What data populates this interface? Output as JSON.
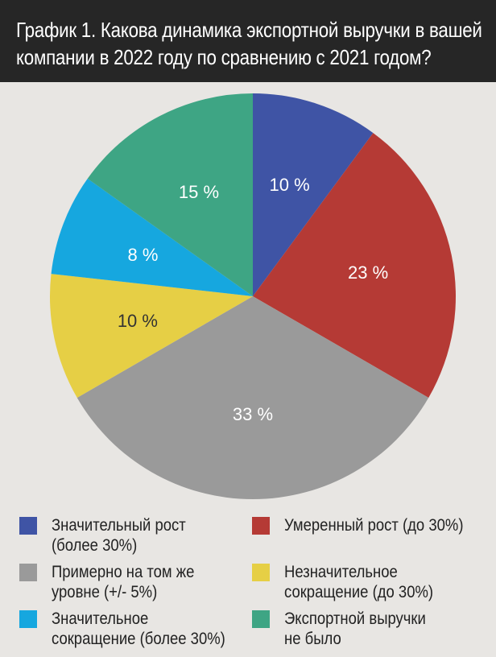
{
  "header": {
    "title_line1": "График 1. Какова динамика экспортной выручки в вашей",
    "title_line2": "компании в 2022 году по сравнению с 2021 годом?"
  },
  "chart_data": {
    "type": "pie",
    "title": "График 1. Какова динамика экспортной выручки в вашей компании в 2022 году по сравнению с 2021 годом?",
    "start": "12 o'clock, clockwise",
    "slices": [
      {
        "label": "Значительный рост (более 30%)",
        "value": 10,
        "display": "10 %",
        "color": "#3f54a5"
      },
      {
        "label": "Умеренный рост (до 30%)",
        "value": 23,
        "display": "23 %",
        "color": "#b53a35"
      },
      {
        "label": "Примерно на том же уровне (+/- 5%)",
        "value": 33,
        "display": "33 %",
        "color": "#9a9a9a"
      },
      {
        "label": "Незначительное сокращение (до 30%)",
        "value": 10,
        "display": "10 %",
        "color": "#e6cf45"
      },
      {
        "label": "Значительное сокращение (более 30%)",
        "value": 8,
        "display": "8 %",
        "color": "#16a7df"
      },
      {
        "label": "Экспортной выручки не было",
        "value": 15,
        "display": "15 %",
        "color": "#3ea584"
      }
    ],
    "legend_placement": "bottom"
  },
  "legend": [
    {
      "line1": "Значительный рост",
      "line2": "(более 30%)",
      "color": "#3f54a5"
    },
    {
      "line1": "Умеренный рост (до 30%)",
      "line2": "",
      "color": "#b53a35"
    },
    {
      "line1": "Примерно на том же",
      "line2": "уровне (+/- 5%)",
      "color": "#9a9a9a"
    },
    {
      "line1": "Незначительное",
      "line2": "сокращение (до 30%)",
      "color": "#e6cf45"
    },
    {
      "line1": "Значительное",
      "line2": "сокращение (более 30%)",
      "color": "#16a7df"
    },
    {
      "line1": "Экспортной выручки",
      "line2": "не было",
      "color": "#3ea584"
    }
  ]
}
